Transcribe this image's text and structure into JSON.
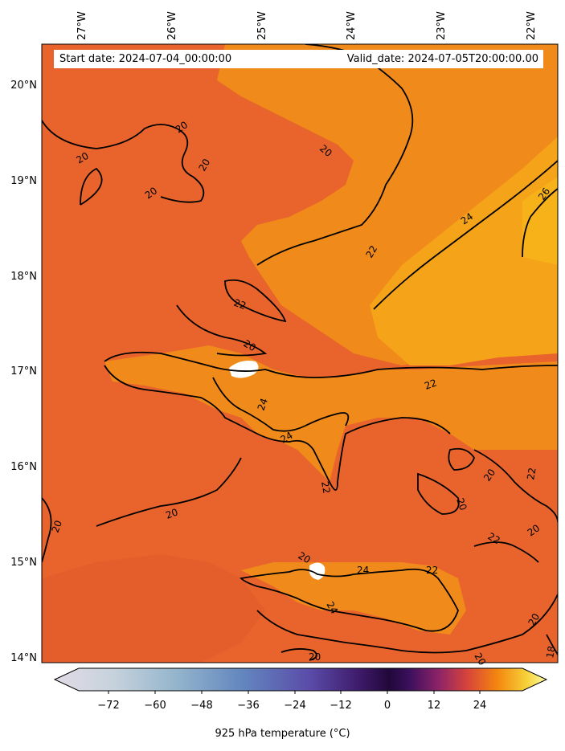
{
  "map": {
    "start_date_label": "Start date: 2024-07-04_00:00:00",
    "valid_date_label": "Valid_date: 2024-07-05T20:00:00.00",
    "lon_ticks": [
      "27°W",
      "26°W",
      "25°W",
      "24°W",
      "23°W",
      "22°W"
    ],
    "lat_ticks": [
      "20°N",
      "19°N",
      "18°N",
      "17°N",
      "16°N",
      "15°N",
      "14°N"
    ],
    "contour_labels": [
      "20",
      "22",
      "24",
      "26",
      "18"
    ],
    "colors": {
      "base": "#e8642c",
      "warm": "#f08a1a",
      "hot": "#f5a319",
      "masked": "#ffffff",
      "contour": "#000000"
    }
  },
  "colorbar": {
    "label": "925 hPa temperature (°C)",
    "ticks": [
      "−72",
      "−60",
      "−48",
      "−36",
      "−24",
      "−12",
      "0",
      "12",
      "24"
    ],
    "colormap": "inferno-like with light-blue negative side"
  }
}
